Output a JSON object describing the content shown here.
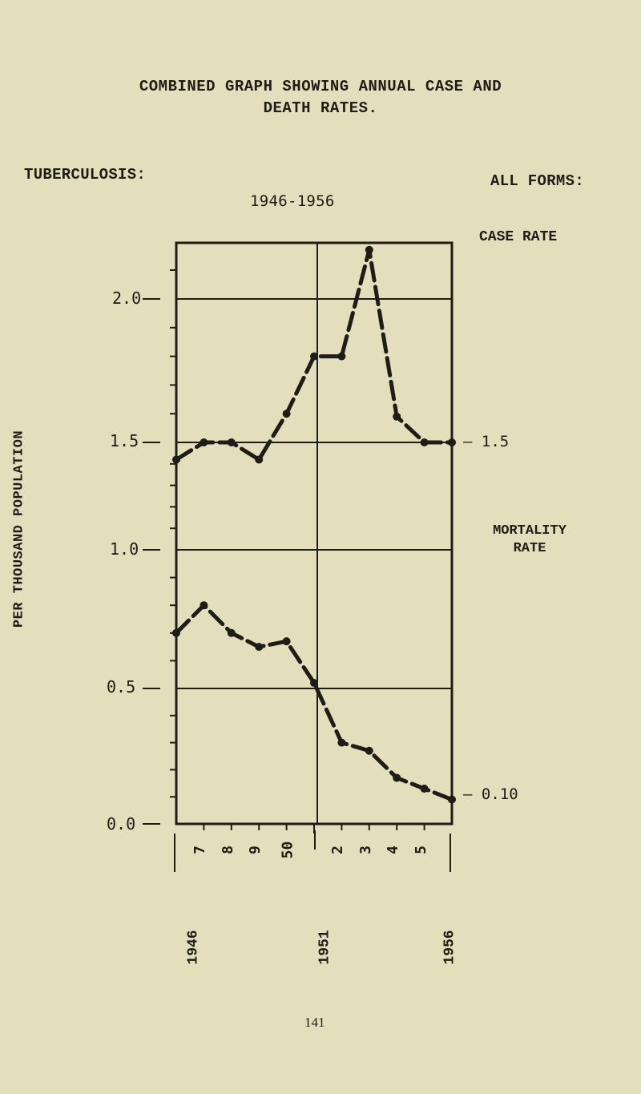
{
  "header": {
    "title_line1": "COMBINED GRAPH SHOWING ANNUAL CASE AND",
    "title_line2": "DEATH RATES.",
    "disease_label": "TUBERCULOSIS:",
    "forms_label": "ALL FORMS:",
    "period": "1946-1956"
  },
  "axes": {
    "y_left_label": "PER THOUSAND POPULATION",
    "y_left_ticks": [
      "2.0",
      "1.5",
      "1.0",
      "0.5",
      "0.0"
    ],
    "right_case_label": "CASE RATE",
    "right_case_value": "— 1.5",
    "right_mortality_label_line1": "MORTALITY",
    "right_mortality_label_line2": "RATE",
    "right_mortality_value": "— 0.10",
    "x_minor_labels": [
      "7",
      "8",
      "9",
      "50",
      "2",
      "3",
      "4",
      "5"
    ],
    "x_major_labels": [
      "1946",
      "1951",
      "1956"
    ]
  },
  "footer": {
    "page_number": "141"
  },
  "colors": {
    "paper": "#e3dfbd",
    "ink": "#1e1c16"
  },
  "chart_data": {
    "type": "line",
    "title": "Combined Graph Showing Annual Case and Death Rates. Tuberculosis: All Forms 1946-1956",
    "xlabel": "Year",
    "ylabel": "Per Thousand Population",
    "x": [
      1946,
      1947,
      1948,
      1949,
      1950,
      1951,
      1952,
      1953,
      1954,
      1955,
      1956
    ],
    "series": [
      {
        "name": "Case Rate",
        "values": [
          1.42,
          1.5,
          1.5,
          1.42,
          1.6,
          1.8,
          1.8,
          2.17,
          1.59,
          1.5,
          1.5
        ]
      },
      {
        "name": "Mortality Rate",
        "values": [
          0.7,
          0.8,
          0.7,
          0.65,
          0.67,
          0.52,
          0.3,
          0.27,
          0.17,
          0.13,
          0.09
        ]
      }
    ],
    "ylim": [
      0.0,
      2.2
    ],
    "y_ticks": [
      0.0,
      0.5,
      1.0,
      1.5,
      2.0
    ],
    "grid": true,
    "annotations": [
      "Case rate 1956: 1.5",
      "Mortality rate 1956: 0.10"
    ]
  }
}
